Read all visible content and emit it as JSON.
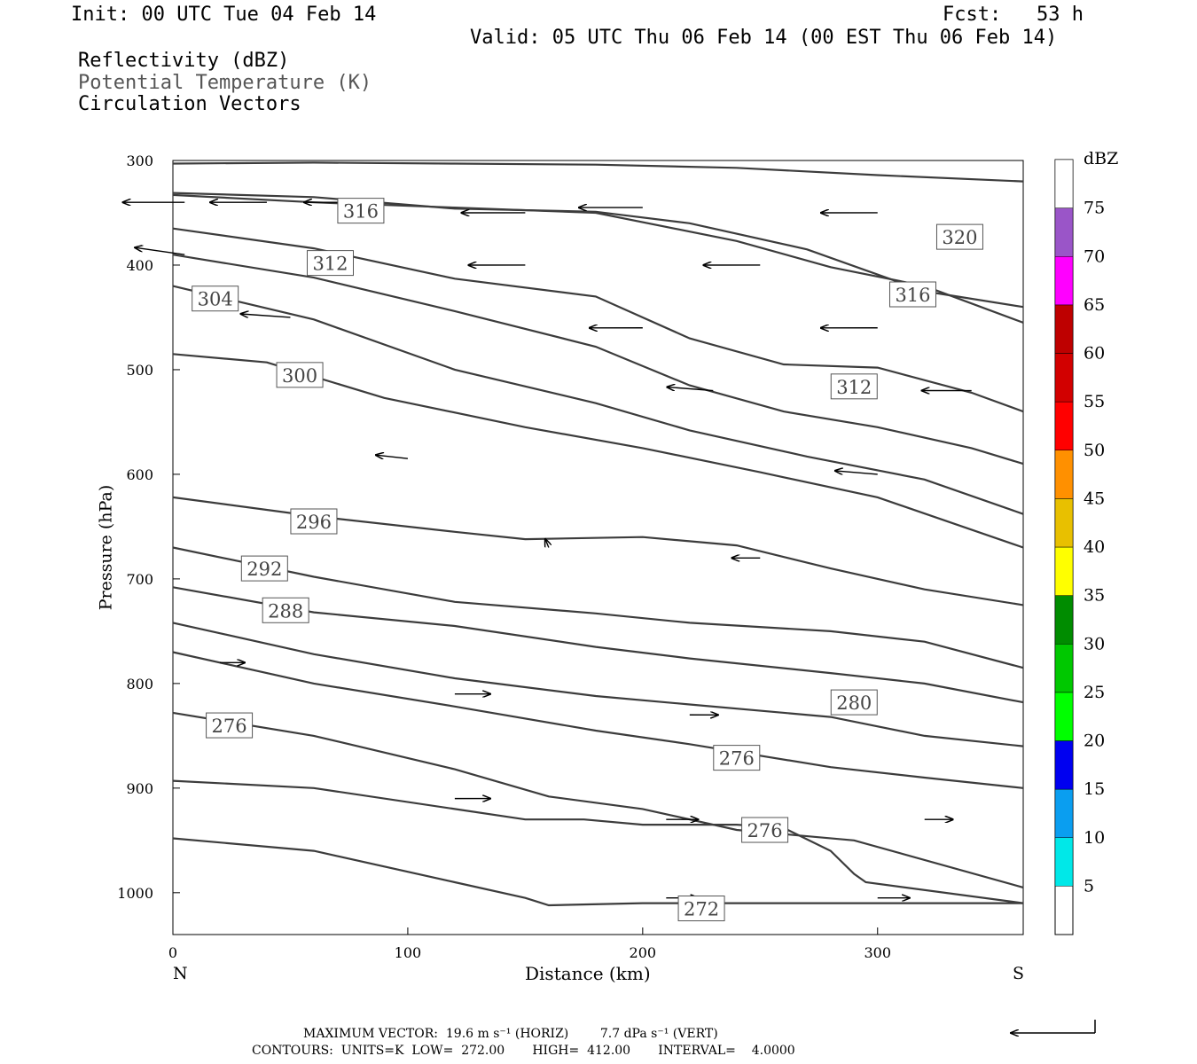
{
  "header": {
    "init": "Init: 00 UTC Tue 04 Feb 14",
    "fcst": "Fcst:   53 h",
    "valid": "Valid: 05 UTC Thu 06 Feb 14 (00 EST Thu 06 Feb 14)",
    "fields": [
      {
        "label": "Reflectivity (dBZ)",
        "color": "#000000"
      },
      {
        "label": "Potential Temperature (K)",
        "color": "#555555"
      },
      {
        "label": "Circulation Vectors",
        "color": "#000000"
      }
    ]
  },
  "footer": {
    "max_vector_line": "MAXIMUM VECTOR:  19.6 m s⁻¹ (HORIZ)        7.7 dPa s⁻¹ (VERT)",
    "contours_line": "CONTOURS:  UNITS=K  LOW=  272.00       HIGH=  412.00       INTERVAL=    4.0000"
  },
  "chart_data": {
    "type": "cross-section contour + vector",
    "xlabel": "Distance (km)",
    "ylabel": "Pressure (hPa)",
    "x_end_labels": {
      "left": "N",
      "right": "S"
    },
    "xlim": [
      0,
      362
    ],
    "ylim": [
      300,
      1040
    ],
    "xticks": [
      0,
      100,
      200,
      300
    ],
    "yticks": [
      300,
      400,
      500,
      600,
      700,
      800,
      900,
      1000
    ],
    "contour_field": "Potential Temperature (K)",
    "contours": [
      {
        "level": 320,
        "label_at": [
          335,
          373
        ],
        "points": [
          [
            0,
            303
          ],
          [
            60,
            302
          ],
          [
            120,
            303
          ],
          [
            180,
            304
          ],
          [
            240,
            307
          ],
          [
            300,
            314
          ],
          [
            362,
            320
          ]
        ]
      },
      {
        "level": 316,
        "label_at": [
          315,
          428
        ],
        "points": [
          [
            0,
            331
          ],
          [
            60,
            335
          ],
          [
            120,
            346
          ],
          [
            180,
            349
          ],
          [
            220,
            360
          ],
          [
            270,
            385
          ],
          [
            320,
            425
          ],
          [
            362,
            440
          ]
        ]
      },
      {
        "level": 316,
        "label_at": [
          80,
          348
        ],
        "points": [
          [
            0,
            333
          ],
          [
            60,
            340
          ],
          [
            120,
            345
          ],
          [
            180,
            350
          ],
          [
            240,
            377
          ],
          [
            280,
            402
          ],
          [
            320,
            420
          ],
          [
            362,
            455
          ]
        ]
      },
      {
        "level": 312,
        "label_at": [
          67,
          398
        ],
        "points": [
          [
            0,
            365
          ],
          [
            60,
            384
          ],
          [
            120,
            413
          ],
          [
            180,
            430
          ],
          [
            220,
            470
          ],
          [
            260,
            495
          ],
          [
            300,
            498
          ],
          [
            340,
            522
          ],
          [
            362,
            540
          ]
        ]
      },
      {
        "level": 312,
        "label_at": [
          290,
          516
        ],
        "points": [
          [
            0,
            390
          ],
          [
            60,
            412
          ],
          [
            120,
            444
          ],
          [
            180,
            478
          ],
          [
            220,
            515
          ],
          [
            260,
            540
          ],
          [
            300,
            555
          ],
          [
            340,
            575
          ],
          [
            362,
            590
          ]
        ]
      },
      {
        "level": 304,
        "label_at": [
          18,
          432
        ],
        "points": [
          [
            0,
            420
          ],
          [
            60,
            452
          ],
          [
            120,
            500
          ],
          [
            180,
            532
          ],
          [
            220,
            558
          ],
          [
            270,
            583
          ],
          [
            320,
            605
          ],
          [
            362,
            638
          ]
        ]
      },
      {
        "level": 300,
        "label_at": [
          54,
          505
        ],
        "points": [
          [
            0,
            485
          ],
          [
            40,
            493
          ],
          [
            90,
            527
          ],
          [
            150,
            555
          ],
          [
            200,
            575
          ],
          [
            250,
            598
          ],
          [
            300,
            622
          ],
          [
            362,
            670
          ]
        ]
      },
      {
        "level": 296,
        "label_at": [
          60,
          645
        ],
        "points": [
          [
            0,
            622
          ],
          [
            60,
            640
          ],
          [
            120,
            655
          ],
          [
            150,
            662
          ],
          [
            200,
            660
          ],
          [
            240,
            668
          ],
          [
            280,
            690
          ],
          [
            320,
            710
          ],
          [
            362,
            725
          ]
        ]
      },
      {
        "level": 292,
        "label_at": [
          39,
          690
        ],
        "points": [
          [
            0,
            670
          ],
          [
            60,
            698
          ],
          [
            120,
            722
          ],
          [
            180,
            733
          ],
          [
            220,
            742
          ],
          [
            280,
            750
          ],
          [
            320,
            760
          ],
          [
            362,
            785
          ]
        ]
      },
      {
        "level": 288,
        "label_at": [
          48,
          730
        ],
        "points": [
          [
            0,
            708
          ],
          [
            60,
            732
          ],
          [
            120,
            745
          ],
          [
            180,
            765
          ],
          [
            220,
            776
          ],
          [
            280,
            790
          ],
          [
            320,
            800
          ],
          [
            362,
            818
          ]
        ]
      },
      {
        "level": 280,
        "label_at": [
          290,
          818
        ],
        "points": [
          [
            0,
            742
          ],
          [
            60,
            772
          ],
          [
            120,
            795
          ],
          [
            180,
            812
          ],
          [
            220,
            820
          ],
          [
            280,
            832
          ],
          [
            320,
            850
          ],
          [
            362,
            860
          ]
        ]
      },
      {
        "level": 276,
        "label_at": [
          240,
          871
        ],
        "points": [
          [
            0,
            770
          ],
          [
            60,
            800
          ],
          [
            120,
            822
          ],
          [
            180,
            845
          ],
          [
            220,
            858
          ],
          [
            280,
            880
          ],
          [
            320,
            890
          ],
          [
            362,
            900
          ]
        ]
      },
      {
        "level": 276,
        "label_at": [
          24,
          840
        ],
        "points": [
          [
            0,
            828
          ],
          [
            60,
            850
          ],
          [
            120,
            882
          ],
          [
            160,
            908
          ],
          [
            200,
            920
          ],
          [
            240,
            940
          ],
          [
            290,
            950
          ],
          [
            362,
            995
          ]
        ]
      },
      {
        "level": 276,
        "label_at": [
          252,
          940
        ],
        "points": [
          [
            0,
            893
          ],
          [
            60,
            900
          ],
          [
            120,
            920
          ],
          [
            150,
            930
          ],
          [
            175,
            930
          ],
          [
            200,
            935
          ],
          [
            240,
            935
          ],
          [
            260,
            938
          ],
          [
            280,
            960
          ],
          [
            290,
            982
          ],
          [
            295,
            990
          ],
          [
            362,
            1010
          ]
        ]
      },
      {
        "level": 272,
        "label_at": [
          225,
          1015
        ],
        "points": [
          [
            0,
            948
          ],
          [
            60,
            960
          ],
          [
            120,
            990
          ],
          [
            150,
            1005
          ],
          [
            160,
            1012
          ],
          [
            200,
            1010
          ],
          [
            229,
            1010
          ],
          [
            362,
            1010
          ]
        ]
      }
    ],
    "vectors_sampled": [
      {
        "x": 5,
        "p": 340,
        "u": -0.87,
        "w": 0.0
      },
      {
        "x": 40,
        "p": 340,
        "u": -0.8,
        "w": 0.0
      },
      {
        "x": 80,
        "p": 340,
        "u": -0.8,
        "w": 0.0
      },
      {
        "x": 150,
        "p": 350,
        "u": -0.9,
        "w": 0.0
      },
      {
        "x": 200,
        "p": 345,
        "u": -0.9,
        "w": 0.0
      },
      {
        "x": 300,
        "p": 350,
        "u": -0.8,
        "w": 0.0
      },
      {
        "x": 5,
        "p": 390,
        "u": -0.7,
        "w": 0.1
      },
      {
        "x": 150,
        "p": 400,
        "u": -0.8,
        "w": 0.0
      },
      {
        "x": 250,
        "p": 400,
        "u": -0.8,
        "w": 0.0
      },
      {
        "x": 50,
        "p": 450,
        "u": -0.7,
        "w": 0.05
      },
      {
        "x": 200,
        "p": 460,
        "u": -0.75,
        "w": 0.0
      },
      {
        "x": 300,
        "p": 460,
        "u": -0.8,
        "w": 0.0
      },
      {
        "x": 60,
        "p": 510,
        "u": -0.3,
        "w": 0.0
      },
      {
        "x": 230,
        "p": 520,
        "u": -0.65,
        "w": 0.05
      },
      {
        "x": 340,
        "p": 520,
        "u": -0.7,
        "w": 0.0
      },
      {
        "x": 100,
        "p": 585,
        "u": -0.45,
        "w": 0.05
      },
      {
        "x": 300,
        "p": 600,
        "u": -0.6,
        "w": 0.05
      },
      {
        "x": 160,
        "p": 670,
        "u": -0.05,
        "w": 0.12
      },
      {
        "x": 250,
        "p": 680,
        "u": -0.4,
        "w": 0.0
      },
      {
        "x": 20,
        "p": 780,
        "u": 0.35,
        "w": 0.0
      },
      {
        "x": 120,
        "p": 810,
        "u": 0.5,
        "w": 0.0
      },
      {
        "x": 220,
        "p": 830,
        "u": 0.4,
        "w": 0.0
      },
      {
        "x": 120,
        "p": 910,
        "u": 0.5,
        "w": 0.0
      },
      {
        "x": 210,
        "p": 930,
        "u": 0.45,
        "w": 0.0
      },
      {
        "x": 320,
        "p": 930,
        "u": 0.4,
        "w": 0.0
      },
      {
        "x": 210,
        "p": 1005,
        "u": 0.45,
        "w": 0.0
      },
      {
        "x": 300,
        "p": 1005,
        "u": 0.45,
        "w": 0.0
      }
    ],
    "colorbar": {
      "title": "dBZ",
      "levels": [
        5,
        10,
        15,
        20,
        25,
        30,
        35,
        40,
        45,
        50,
        55,
        60,
        65,
        70,
        75
      ],
      "colors": [
        "#00e8e8",
        "#0a9ef0",
        "#0000f0",
        "#00ff00",
        "#00c800",
        "#008c00",
        "#ffff00",
        "#e8c000",
        "#ff9000",
        "#ff0000",
        "#d20000",
        "#be0000",
        "#ff00ff",
        "#9a55c8",
        "#ffffff"
      ]
    }
  }
}
